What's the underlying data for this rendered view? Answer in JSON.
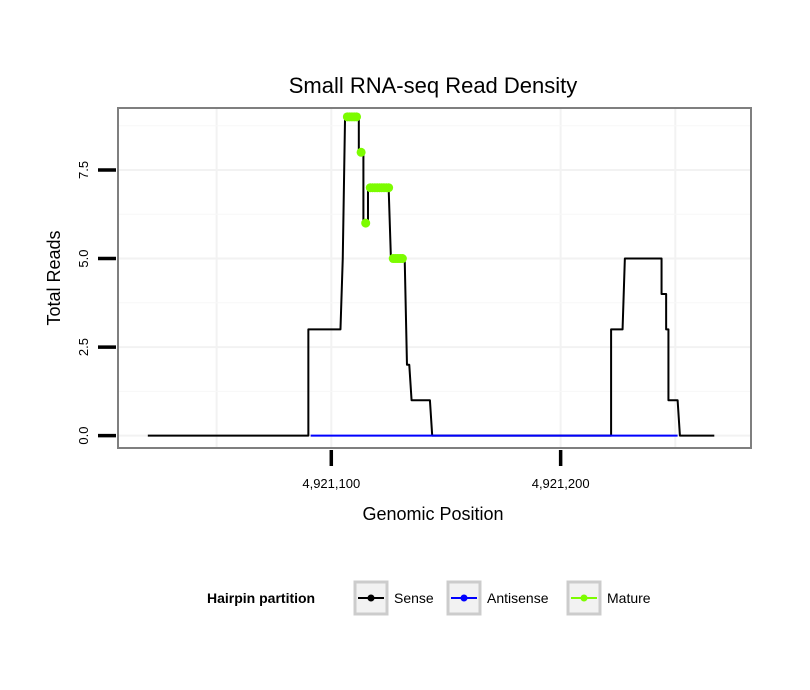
{
  "chart_data": {
    "type": "line",
    "title": "Small RNA-seq Read Density",
    "xlabel": "Genomic Position",
    "ylabel": "Total Reads",
    "xlim": [
      4921007,
      4921283
    ],
    "ylim": [
      -0.35,
      9.25
    ],
    "x_ticks": [
      4921100,
      4921200
    ],
    "x_tick_labels": [
      "4,921,100",
      "4,921,200"
    ],
    "y_ticks": [
      0,
      2.5,
      5,
      7.5
    ],
    "y_tick_labels": [
      "0.0",
      "2.5",
      "5.0",
      "7.5"
    ],
    "grid": true,
    "legend_position": "bottom",
    "legend_title": "Hairpin partition",
    "series": [
      {
        "name": "Sense",
        "color": "#000000",
        "step": true,
        "points": [
          [
            4921020,
            0
          ],
          [
            4921090,
            0
          ],
          [
            4921090,
            3
          ],
          [
            4921104,
            3
          ],
          [
            4921105,
            5
          ],
          [
            4921106,
            9
          ],
          [
            4921112,
            9
          ],
          [
            4921112,
            8
          ],
          [
            4921114,
            8
          ],
          [
            4921114,
            6
          ],
          [
            4921116,
            6
          ],
          [
            4921116,
            7
          ],
          [
            4921125,
            7
          ],
          [
            4921126,
            5
          ],
          [
            4921132,
            5
          ],
          [
            4921133,
            2
          ],
          [
            4921134,
            2
          ],
          [
            4921135,
            1
          ],
          [
            4921143,
            1
          ],
          [
            4921144,
            0
          ],
          [
            4921222,
            0
          ],
          [
            4921222,
            3
          ],
          [
            4921227,
            3
          ],
          [
            4921228,
            5
          ],
          [
            4921244,
            5
          ],
          [
            4921244,
            4
          ],
          [
            4921246,
            4
          ],
          [
            4921246,
            3
          ],
          [
            4921247,
            3
          ],
          [
            4921247,
            1
          ],
          [
            4921251,
            1
          ],
          [
            4921252,
            0
          ],
          [
            4921267,
            0
          ]
        ]
      },
      {
        "name": "Antisense",
        "color": "#0000ff",
        "points": [
          [
            4921091,
            0
          ],
          [
            4921251,
            0
          ]
        ]
      },
      {
        "name": "Mature",
        "color": "#7cfc00",
        "markers": true,
        "points": [
          [
            4921107,
            9
          ],
          [
            4921108,
            9
          ],
          [
            4921109,
            9
          ],
          [
            4921110,
            9
          ],
          [
            4921111,
            9
          ],
          [
            4921113,
            8
          ],
          [
            4921115,
            6
          ],
          [
            4921117,
            7
          ],
          [
            4921118,
            7
          ],
          [
            4921119,
            7
          ],
          [
            4921120,
            7
          ],
          [
            4921121,
            7
          ],
          [
            4921122,
            7
          ],
          [
            4921123,
            7
          ],
          [
            4921124,
            7
          ],
          [
            4921125,
            7
          ],
          [
            4921127,
            5
          ],
          [
            4921128,
            5
          ],
          [
            4921129,
            5
          ],
          [
            4921130,
            5
          ],
          [
            4921131,
            5
          ]
        ]
      }
    ]
  }
}
